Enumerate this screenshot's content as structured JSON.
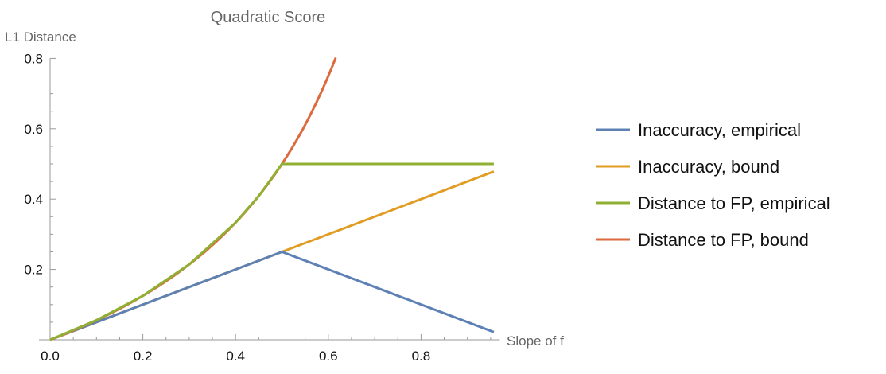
{
  "chart_data": {
    "type": "line",
    "title": "Quadratic Score",
    "xlabel": "Slope of f",
    "ylabel": "L1 Distance",
    "xlim": [
      0,
      0.97
    ],
    "ylim": [
      0,
      0.8
    ],
    "xticks": [
      "0.0",
      "0.2",
      "0.4",
      "0.6",
      "0.8"
    ],
    "xtick_values": [
      0,
      0.2,
      0.4,
      0.6,
      0.8
    ],
    "yticks": [
      "0.2",
      "0.4",
      "0.6",
      "0.8"
    ],
    "ytick_values": [
      0.2,
      0.4,
      0.6,
      0.8
    ],
    "legend_position": "right",
    "series": [
      {
        "name": "Inaccuracy, empirical",
        "color": "#5e81b5",
        "x": [
          0,
          0.5,
          0.957
        ],
        "y": [
          0,
          0.25,
          0.022
        ]
      },
      {
        "name": "Inaccuracy, bound",
        "color": "#e19c24",
        "x": [
          0,
          0.957
        ],
        "y": [
          0,
          0.4785
        ]
      },
      {
        "name": "Distance to FP, empirical",
        "color": "#8fb032",
        "x": [
          0,
          0.1,
          0.2,
          0.3,
          0.4,
          0.45,
          0.5,
          0.957
        ],
        "y": [
          0,
          0.0556,
          0.125,
          0.2143,
          0.3333,
          0.4091,
          0.5,
          0.5
        ]
      },
      {
        "name": "Distance to FP, bound",
        "color": "#db6a3e",
        "formula": "x/(2(1-x))",
        "x": [
          0,
          0.1,
          0.2,
          0.3,
          0.4,
          0.45,
          0.5,
          0.55,
          0.6,
          0.617
        ],
        "y": [
          0,
          0.0556,
          0.125,
          0.2143,
          0.3333,
          0.4091,
          0.5,
          0.6111,
          0.75,
          0.8055
        ]
      }
    ]
  }
}
